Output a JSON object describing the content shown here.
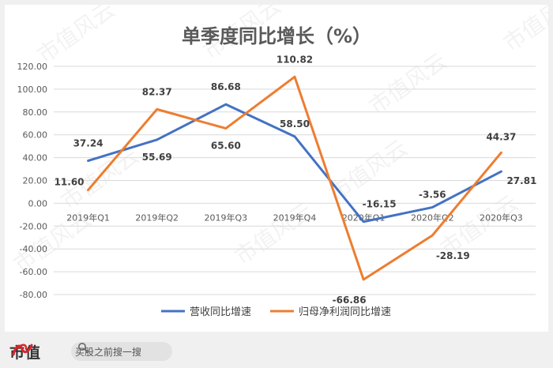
{
  "chart_data": {
    "type": "line",
    "title": "单季度同比增长（%）",
    "categories": [
      "2019年Q1",
      "2019年Q2",
      "2019年Q3",
      "2019年Q4",
      "2020年Q1",
      "2020年Q2",
      "2020年Q3"
    ],
    "ylim": [
      -80,
      120
    ],
    "yticks": [
      "120.00",
      "100.00",
      "80.00",
      "60.00",
      "40.00",
      "20.00",
      "0.00",
      "-20.00",
      "-40.00",
      "-60.00",
      "-80.00"
    ],
    "grid": true,
    "legend_position": "bottom",
    "series": [
      {
        "name": "营收同比增速",
        "color": "#4472c4",
        "values": [
          37.24,
          55.69,
          86.68,
          58.5,
          -16.15,
          -3.56,
          27.81
        ],
        "labels": [
          "37.24",
          "55.69",
          "86.68",
          "58.50",
          "-16.15",
          "-3.56",
          "27.81"
        ]
      },
      {
        "name": "归母净利润同比增速",
        "color": "#ed7d31",
        "values": [
          11.6,
          82.37,
          65.6,
          110.82,
          -66.86,
          -28.19,
          44.37
        ],
        "labels": [
          "11.60",
          "82.37",
          "65.60",
          "110.82",
          "-66.86",
          "-28.19",
          "44.37"
        ]
      }
    ],
    "watermark": "市值风云"
  },
  "footer": {
    "brand": "市值",
    "logo_icon": "fengyun-logo-icon",
    "search_icon": "search-icon",
    "search_text": "买股之前搜一搜"
  }
}
